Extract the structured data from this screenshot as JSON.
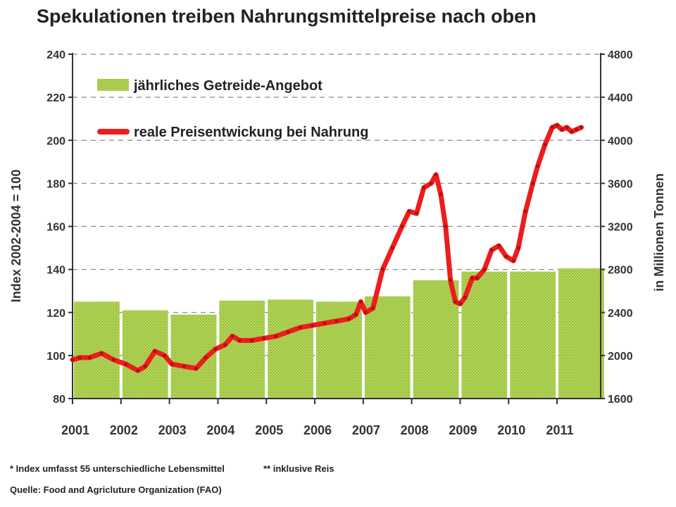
{
  "title": "Spekulationen treiben Nahrungsmittelpreise nach oben",
  "footnotes": {
    "note1": "* Index umfasst 55 unterschiedliche Lebensmittel",
    "note2": "** inklusive Reis",
    "source": "Quelle: Food and Agricluture Organization (FAO)"
  },
  "colors": {
    "bars": "#a9cf4a",
    "line": "#ee1c1c",
    "grid": "#8a8a8a"
  },
  "chart_data": {
    "type": "bar",
    "x_ticks": [
      "2001",
      "2002",
      "2003",
      "2004",
      "2005",
      "2006",
      "2007",
      "2008",
      "2009",
      "2010",
      "2011"
    ],
    "ylabel_left": "Index 2002-2004 = 100",
    "ylabel_right": "in Millionen Tonnen",
    "ylim_left": [
      80,
      240
    ],
    "yticks_left": [
      80,
      100,
      120,
      140,
      160,
      180,
      200,
      220,
      240
    ],
    "ylim_right": [
      1600,
      4800
    ],
    "yticks_right": [
      1600,
      2000,
      2400,
      2800,
      3200,
      3600,
      4000,
      4400,
      4800
    ],
    "grid": true,
    "legend_position": "top-left",
    "legend": [
      {
        "label": "jährliches Getreide-Angebot",
        "kind": "bar"
      },
      {
        "label": "reale Preisentwickung bei Nahrung",
        "kind": "line"
      }
    ],
    "bars": {
      "name": "jährliches Getreide-Angebot",
      "axis": "right",
      "x": [
        2001,
        2002,
        2003,
        2004,
        2005,
        2006,
        2007,
        2008,
        2009,
        2010,
        2011
      ],
      "values": [
        2500,
        2420,
        2380,
        2510,
        2520,
        2500,
        2550,
        2700,
        2780,
        2780,
        2810
      ]
    },
    "line": {
      "name": "reale Preisentwickung bei Nahrung",
      "axis": "left",
      "x": [
        2001.0,
        2001.15,
        2001.35,
        2001.6,
        2001.85,
        2002.1,
        2002.35,
        2002.5,
        2002.7,
        2002.9,
        2003.05,
        2003.3,
        2003.55,
        2003.75,
        2003.95,
        2004.15,
        2004.3,
        2004.45,
        2004.7,
        2004.95,
        2005.2,
        2005.45,
        2005.7,
        2005.95,
        2006.2,
        2006.45,
        2006.7,
        2006.85,
        2006.95,
        2007.05,
        2007.2,
        2007.4,
        2007.6,
        2007.8,
        2007.95,
        2008.1,
        2008.25,
        2008.4,
        2008.5,
        2008.6,
        2008.7,
        2008.8,
        2008.9,
        2009.0,
        2009.1,
        2009.25,
        2009.35,
        2009.5,
        2009.65,
        2009.8,
        2009.95,
        2010.1,
        2010.2,
        2010.35,
        2010.5,
        2010.6,
        2010.75,
        2010.9,
        2011.0,
        2011.1,
        2011.2,
        2011.3,
        2011.4,
        2011.5
      ],
      "values": [
        98,
        99,
        99,
        101,
        98,
        96,
        93,
        95,
        102,
        100,
        96,
        95,
        94,
        99,
        103,
        105,
        109,
        107,
        107,
        108,
        109,
        111,
        113,
        114,
        115,
        116,
        117,
        119,
        125,
        120,
        122,
        140,
        150,
        160,
        167,
        166,
        178,
        180,
        184,
        175,
        160,
        135,
        125,
        124,
        127,
        136,
        136,
        140,
        149,
        151,
        146,
        144,
        150,
        167,
        180,
        188,
        198,
        206,
        207,
        205,
        206,
        204,
        205,
        206
      ]
    }
  }
}
